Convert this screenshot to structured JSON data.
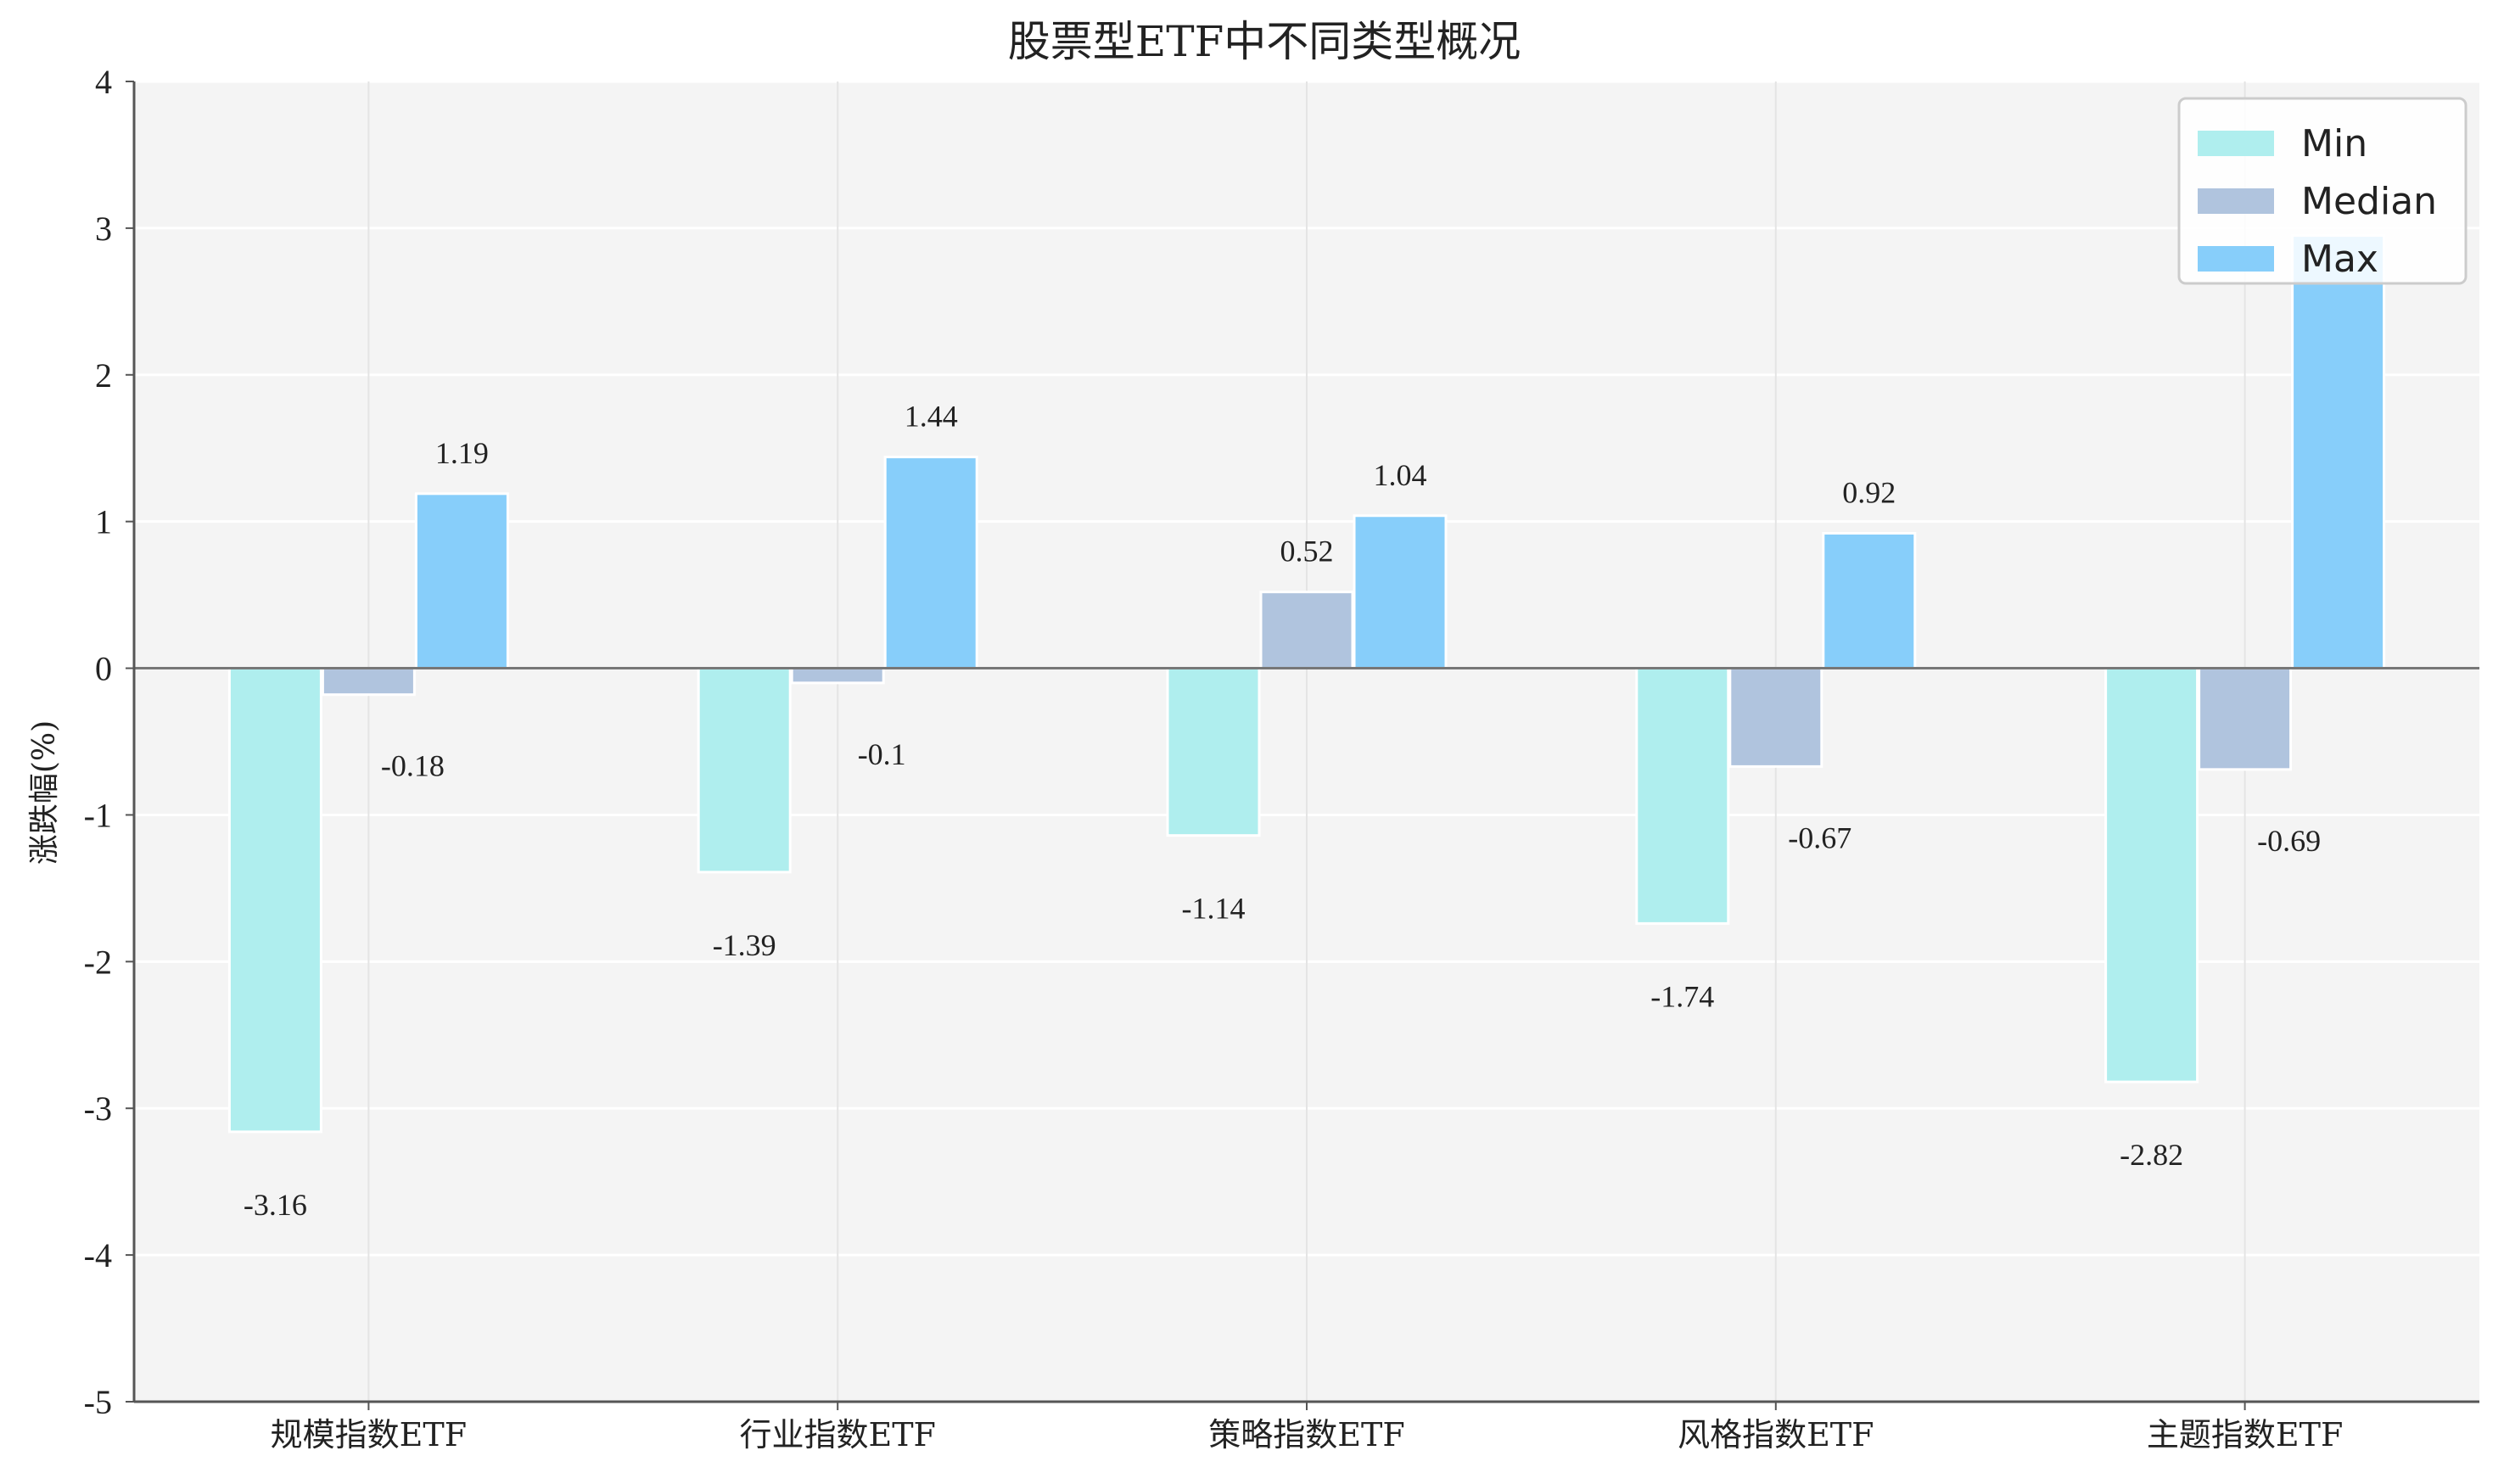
{
  "chart_data": {
    "type": "bar",
    "title": "股票型ETF中不同类型概况",
    "xlabel": "",
    "ylabel": "涨跌幅(%)",
    "ylim": [
      -5,
      4
    ],
    "yticks": [
      "4",
      "3",
      "2",
      "1",
      "0",
      "-1",
      "-2",
      "-3",
      "-4",
      "-5"
    ],
    "grid": true,
    "legend_position": "top-right",
    "categories": [
      "规模指数ETF",
      "行业指数ETF",
      "策略指数ETF",
      "风格指数ETF",
      "主题指数ETF"
    ],
    "series": [
      {
        "name": "Min",
        "color": "#afeeee",
        "values": [
          -3.16,
          -1.39,
          -1.14,
          -1.74,
          -2.82
        ],
        "labels": [
          "-3.16",
          "-1.39",
          "-1.14",
          "-1.74",
          "-2.82"
        ]
      },
      {
        "name": "Median",
        "color": "#b0c4de",
        "values": [
          -0.18,
          -0.1,
          0.52,
          -0.67,
          -0.69
        ],
        "labels": [
          "-0.18",
          "-0.1",
          "0.52",
          "-0.67",
          "-0.69"
        ]
      },
      {
        "name": "Max",
        "color": "#87cefa",
        "values": [
          1.19,
          1.44,
          1.04,
          0.92,
          2.95
        ],
        "labels": [
          "1.19",
          "1.44",
          "1.04",
          "0.92",
          ""
        ]
      }
    ]
  }
}
